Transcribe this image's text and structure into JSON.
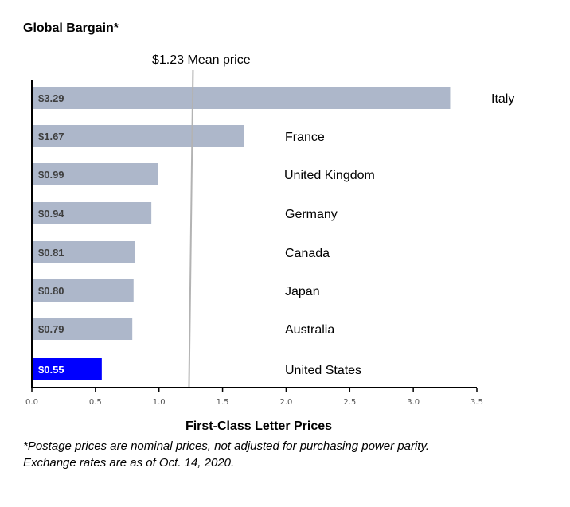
{
  "chart_data": {
    "type": "bar",
    "orientation": "horizontal",
    "title": "Global Bargain*",
    "xlabel": "First-Class Letter Prices",
    "categories": [
      "Italy",
      "France",
      "United Kingdom",
      "Germany",
      "Canada",
      "Japan",
      "Australia",
      "United States"
    ],
    "values": [
      3.29,
      1.67,
      0.99,
      0.94,
      0.81,
      0.8,
      0.79,
      0.55
    ],
    "data_labels": [
      "$3.29",
      "$1.67",
      "$0.99",
      "$0.94",
      "$0.81",
      "$0.80",
      "$0.79",
      "$0.55"
    ],
    "xlim": [
      0,
      3.5
    ],
    "xticks": [
      "0.0",
      "0.5",
      "1.0",
      "1.5",
      "2.0",
      "2.5",
      "3.0",
      "3.5"
    ],
    "grid": false,
    "mean": {
      "value": 1.23,
      "label": "$1.23 Mean price"
    },
    "colors": {
      "bar": "#adb7ca",
      "highlight": "#0000ff",
      "mean_line": "#b3b3b3",
      "label": "#3f3f3f",
      "highlight_label": "#ffffff"
    },
    "highlight_category": "United States"
  },
  "footnotes": [
    "*Postage prices are nominal prices, not adjusted for purchasing power parity.",
    "Exchange rates are as of Oct. 14, 2020."
  ]
}
